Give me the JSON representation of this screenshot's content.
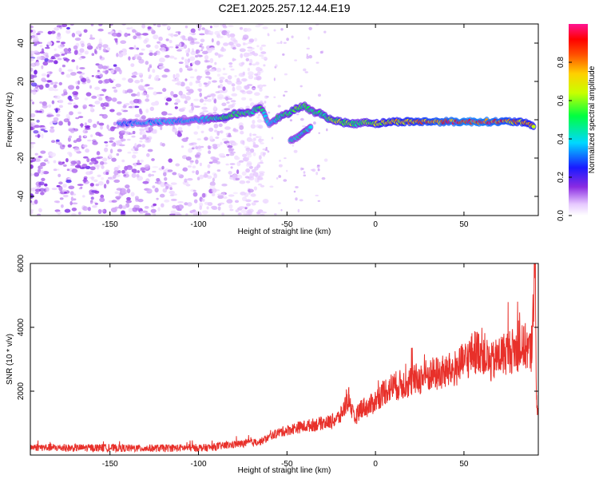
{
  "title": "C2E1.2025.257.12.44.E19",
  "chart_data": [
    {
      "type": "heatmap",
      "xlabel": "Height of straight line (km)",
      "ylabel": "Frequency (Hz)",
      "xlim": [
        -195,
        92
      ],
      "ylim": [
        -50,
        50
      ],
      "xticks": [
        -150,
        -100,
        -50,
        0,
        50
      ],
      "yticks": [
        -40,
        -20,
        0,
        20,
        40
      ],
      "colorbar": {
        "label": "Normalized spectral amplitude",
        "range": [
          0,
          1
        ],
        "ticks": [
          "0.0",
          "0.2",
          "0.4",
          "0.6",
          "0.8"
        ],
        "colors": [
          "#ffffff",
          "#8a2be2",
          "#0000ff",
          "#00ffff",
          "#00ff00",
          "#ffff00",
          "#ff8000",
          "#ff0000",
          "#ff1493"
        ]
      },
      "ridge": [
        {
          "x": -145,
          "f": -2,
          "a": 0.3
        },
        {
          "x": -115,
          "f": -1,
          "a": 0.35
        },
        {
          "x": -100,
          "f": 0,
          "a": 0.35
        },
        {
          "x": -90,
          "f": 0.5,
          "a": 0.45
        },
        {
          "x": -85,
          "f": 1.5,
          "a": 0.55
        },
        {
          "x": -80,
          "f": 3,
          "a": 0.5
        },
        {
          "x": -75,
          "f": 3.5,
          "a": 0.5
        },
        {
          "x": -70,
          "f": 4,
          "a": 0.45
        },
        {
          "x": -65,
          "f": 7,
          "a": 0.5
        },
        {
          "x": -60,
          "f": -2,
          "a": 0.35
        },
        {
          "x": -55,
          "f": 1,
          "a": 0.45
        },
        {
          "x": -50,
          "f": 3,
          "a": 0.5
        },
        {
          "x": -45,
          "f": 6,
          "a": 0.55
        },
        {
          "x": -40,
          "f": 7,
          "a": 0.5
        },
        {
          "x": -35,
          "f": 4,
          "a": 0.45
        },
        {
          "x": -30,
          "f": 3,
          "a": 0.5
        },
        {
          "x": -25,
          "f": 0,
          "a": 0.55
        },
        {
          "x": -20,
          "f": -1,
          "a": 0.6
        },
        {
          "x": -15,
          "f": -2,
          "a": 0.6
        },
        {
          "x": -10,
          "f": -2,
          "a": 0.5
        },
        {
          "x": -5,
          "f": -1,
          "a": 0.55
        },
        {
          "x": 0,
          "f": -2,
          "a": 0.65
        },
        {
          "x": 10,
          "f": -1,
          "a": 0.7
        },
        {
          "x": 20,
          "f": -1,
          "a": 0.75
        },
        {
          "x": 30,
          "f": -1,
          "a": 0.8
        },
        {
          "x": 40,
          "f": -1,
          "a": 0.85
        },
        {
          "x": 50,
          "f": -1,
          "a": 0.9
        },
        {
          "x": 60,
          "f": -1,
          "a": 0.9
        },
        {
          "x": 70,
          "f": -1,
          "a": 0.85
        },
        {
          "x": 80,
          "f": -1,
          "a": 0.75
        },
        {
          "x": 90,
          "f": -3,
          "a": 0.7
        }
      ],
      "branch": [
        {
          "x": -48,
          "f": -11,
          "a": 0.4
        },
        {
          "x": -44,
          "f": -9,
          "a": 0.4
        },
        {
          "x": -40,
          "f": -6,
          "a": 0.45
        },
        {
          "x": -36,
          "f": -4,
          "a": 0.4
        }
      ]
    },
    {
      "type": "line",
      "xlabel": "Height of straight line (km)",
      "ylabel": "SNR (10 * v/v)",
      "xlim": [
        -195,
        92
      ],
      "ylim": [
        0,
        6000
      ],
      "xticks": [
        -150,
        -100,
        -50,
        0,
        50
      ],
      "yticks": [
        2000,
        4000,
        6000
      ],
      "color": "#e8302a",
      "series": [
        {
          "name": "SNR",
          "x": [
            -195,
            -175,
            -155,
            -135,
            -115,
            -95,
            -80,
            -65,
            -55,
            -45,
            -35,
            -25,
            -20,
            -15,
            -12,
            -8,
            -4,
            0,
            5,
            10,
            15,
            20,
            30,
            40,
            45,
            50,
            55,
            60,
            65,
            70,
            75,
            80,
            85,
            88,
            90,
            91,
            92
          ],
          "y": [
            250,
            220,
            230,
            210,
            220,
            230,
            330,
            420,
            700,
            850,
            950,
            1050,
            1200,
            1800,
            1100,
            1500,
            1500,
            1700,
            2000,
            2150,
            2200,
            2300,
            2500,
            2600,
            2700,
            2900,
            3200,
            3300,
            2850,
            3100,
            3250,
            3300,
            3400,
            3200,
            6000,
            1800,
            1300
          ]
        }
      ]
    }
  ]
}
